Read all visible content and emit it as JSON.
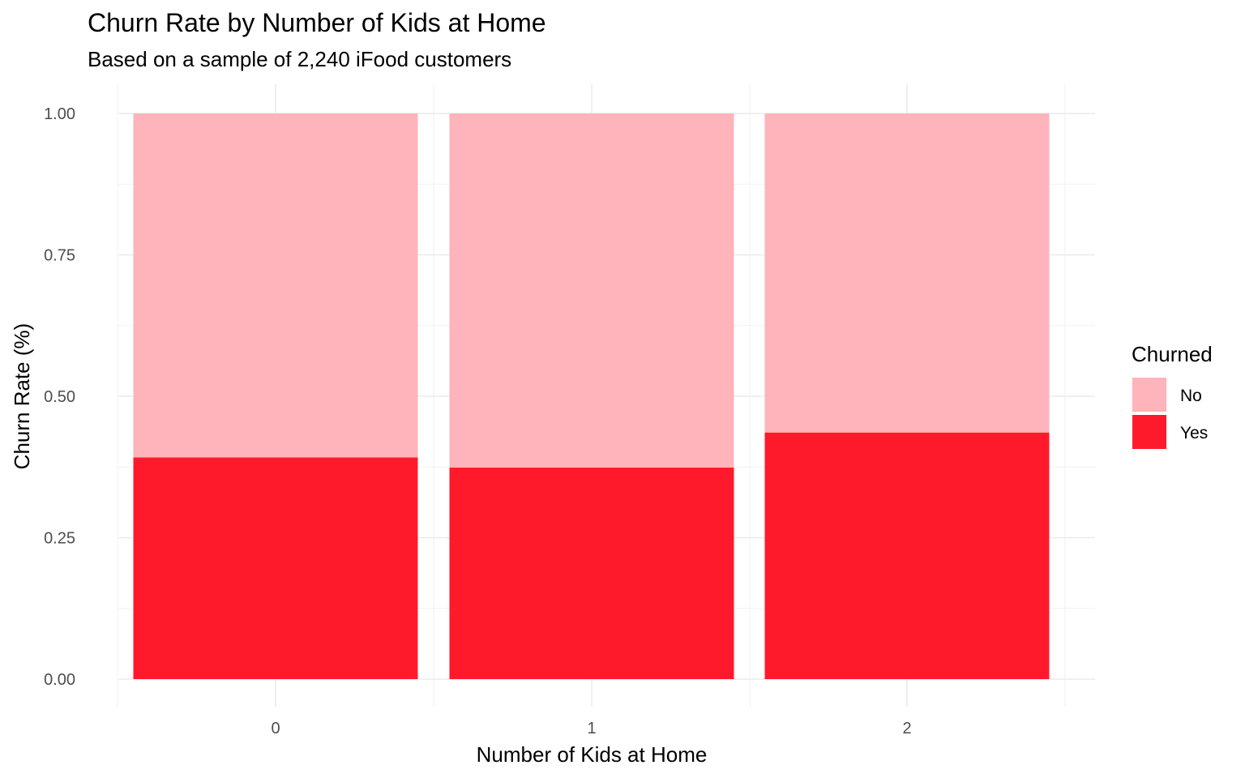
{
  "chart_data": {
    "type": "bar",
    "stacked": true,
    "title": "Churn Rate by Number of Kids at Home",
    "subtitle": "Based on a sample of 2,240 iFood customers",
    "xlabel": "Number of Kids at Home",
    "ylabel": "Churn Rate (%)",
    "categories": [
      "0",
      "1",
      "2"
    ],
    "ylim": [
      0,
      1
    ],
    "yticks": [
      "0.00",
      "0.25",
      "0.50",
      "0.75",
      "1.00"
    ],
    "grid": true,
    "legend": {
      "title": "Churned",
      "position": "right",
      "entries": [
        "No",
        "Yes"
      ]
    },
    "series": [
      {
        "name": "Yes",
        "color": "#FF1A2B",
        "values": [
          0.392,
          0.374,
          0.436
        ]
      },
      {
        "name": "No",
        "color": "#FFB3BA",
        "values": [
          0.608,
          0.626,
          0.564
        ]
      }
    ]
  }
}
